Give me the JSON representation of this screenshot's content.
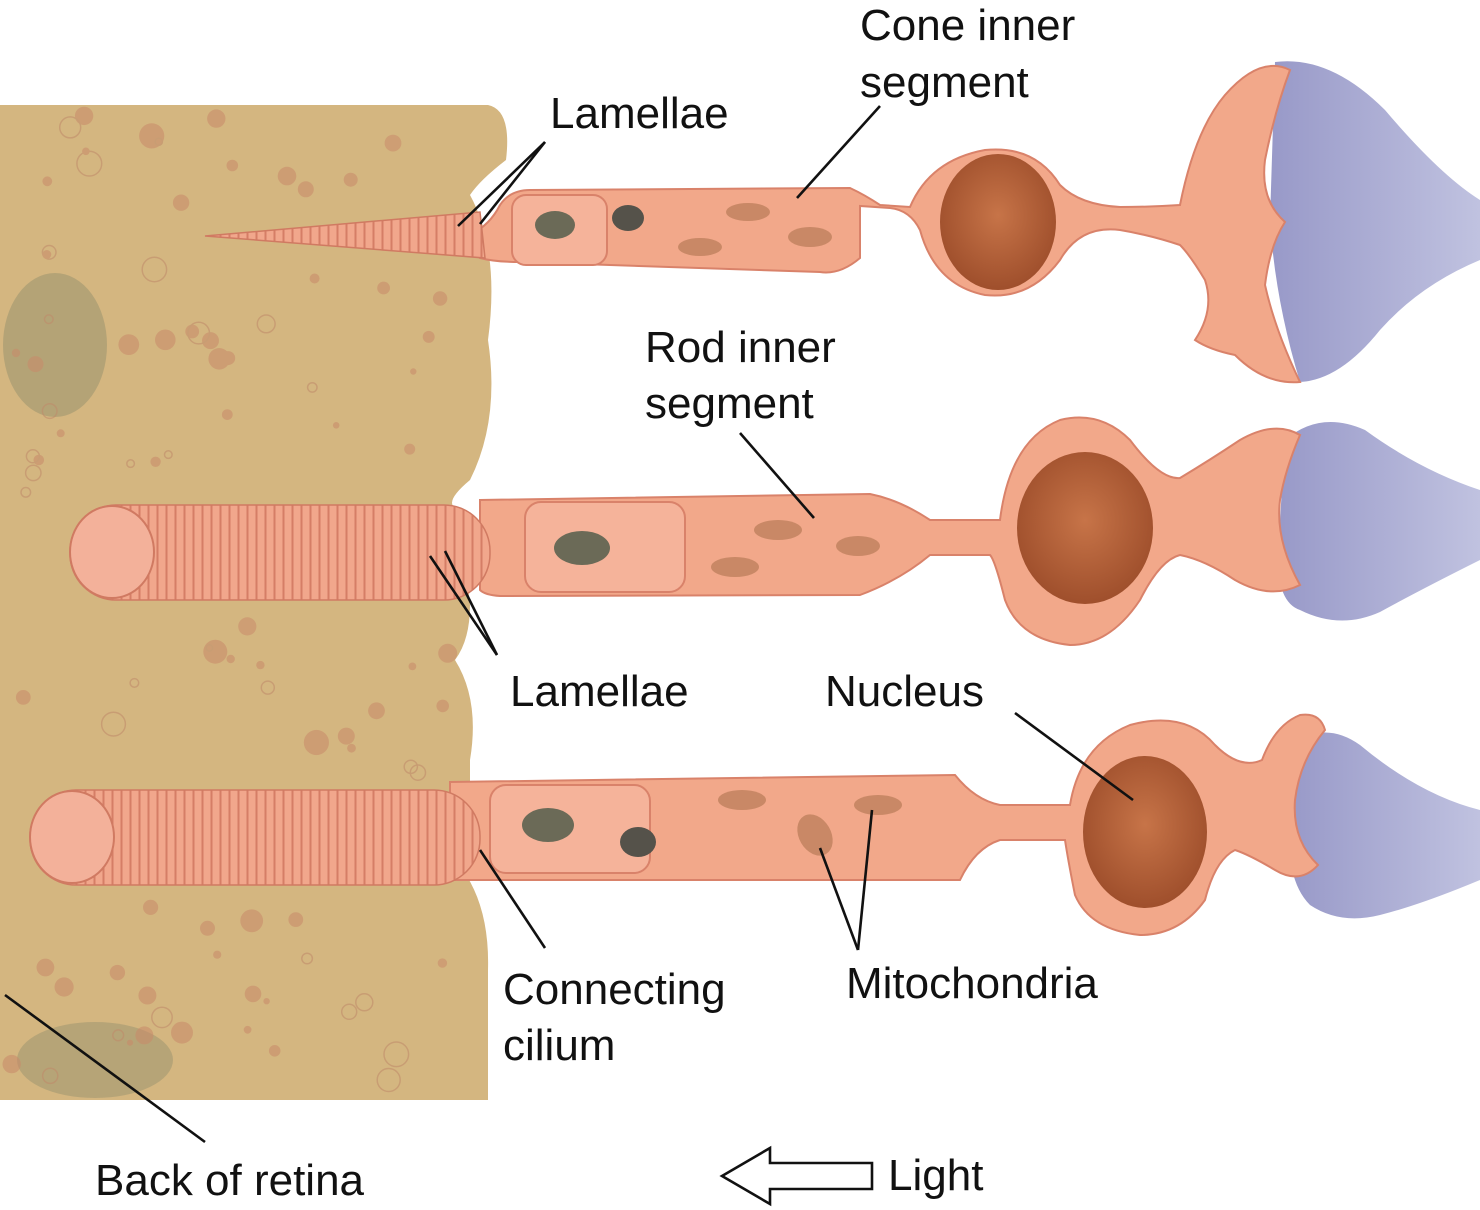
{
  "labels": {
    "cone_inner_segment": [
      "Cone inner",
      "segment"
    ],
    "lamellae_top": "Lamellae",
    "rod_inner_segment": [
      "Rod inner",
      "segment"
    ],
    "lamellae_middle": "Lamellae",
    "nucleus": "Nucleus",
    "connecting_cilium": [
      "Connecting",
      "cilium"
    ],
    "mitochondria": "Mitochondria",
    "back_of_retina": "Back of retina",
    "light": "Light"
  },
  "colors": {
    "background": "#ffffff",
    "retina_tissue": "#d2b47f",
    "cell_body": "#f0a487",
    "cell_outline": "#d9826a",
    "nucleus": "#b8623a",
    "synapse": "#a9abd0",
    "text": "#111111"
  },
  "icons": {
    "light_direction": "left-arrow-outline-icon"
  }
}
